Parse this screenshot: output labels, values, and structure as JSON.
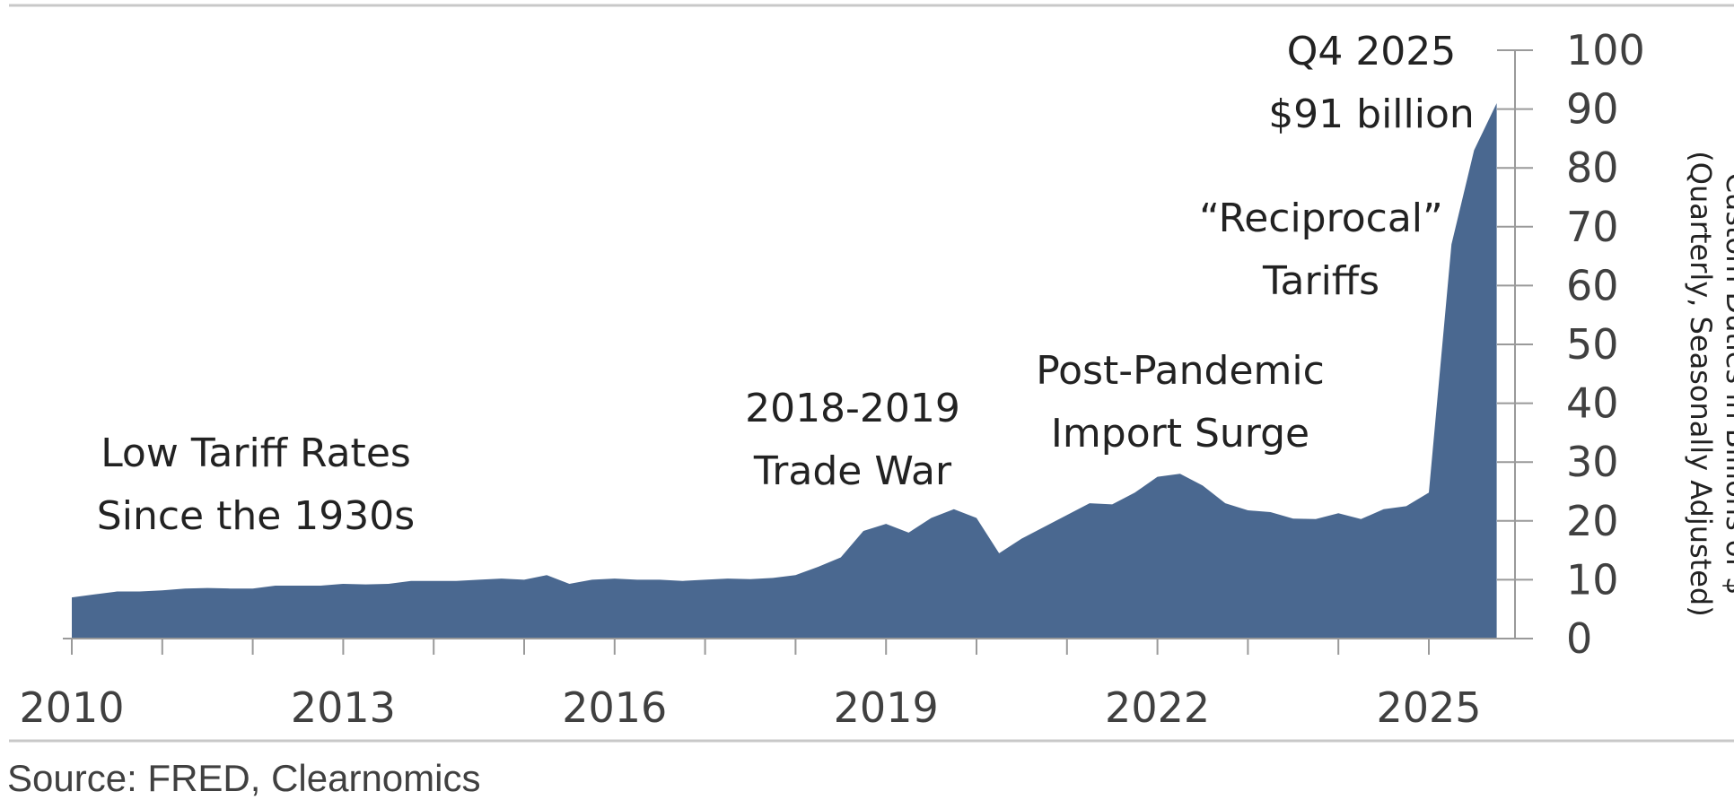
{
  "chart_data": {
    "type": "area",
    "color": "#4a6890",
    "xlabel": "",
    "ylabel": [
      "Custom Duties in Billions of $",
      "(Quarterly, Seasonally Adjusted)"
    ],
    "ylim": [
      0,
      100
    ],
    "yticks": [
      0,
      10,
      20,
      30,
      40,
      50,
      60,
      70,
      80,
      90,
      100
    ],
    "xticks": [
      2010,
      2013,
      2016,
      2019,
      2022,
      2025
    ],
    "grid": false,
    "y_axis_side": "right",
    "x": [
      "2010 Q1",
      "2010 Q2",
      "2010 Q3",
      "2010 Q4",
      "2011 Q1",
      "2011 Q2",
      "2011 Q3",
      "2011 Q4",
      "2012 Q1",
      "2012 Q2",
      "2012 Q3",
      "2012 Q4",
      "2013 Q1",
      "2013 Q2",
      "2013 Q3",
      "2013 Q4",
      "2014 Q1",
      "2014 Q2",
      "2014 Q3",
      "2014 Q4",
      "2015 Q1",
      "2015 Q2",
      "2015 Q3",
      "2015 Q4",
      "2016 Q1",
      "2016 Q2",
      "2016 Q3",
      "2016 Q4",
      "2017 Q1",
      "2017 Q2",
      "2017 Q3",
      "2017 Q4",
      "2018 Q1",
      "2018 Q2",
      "2018 Q3",
      "2018 Q4",
      "2019 Q1",
      "2019 Q2",
      "2019 Q3",
      "2019 Q4",
      "2020 Q1",
      "2020 Q2",
      "2020 Q3",
      "2020 Q4",
      "2021 Q1",
      "2021 Q2",
      "2021 Q3",
      "2021 Q4",
      "2022 Q1",
      "2022 Q2",
      "2022 Q3",
      "2022 Q4",
      "2023 Q1",
      "2023 Q2",
      "2023 Q3",
      "2023 Q4",
      "2024 Q1",
      "2024 Q2",
      "2024 Q3",
      "2024 Q4",
      "2025 Q1",
      "2025 Q2",
      "2025 Q3",
      "2025 Q4"
    ],
    "values": [
      7.0,
      7.5,
      8.0,
      8.0,
      8.2,
      8.5,
      8.6,
      8.5,
      8.5,
      9.0,
      9.0,
      9.0,
      9.3,
      9.2,
      9.3,
      9.8,
      9.8,
      9.8,
      10.0,
      10.2,
      10.0,
      10.8,
      9.3,
      10.0,
      10.2,
      10.0,
      10.0,
      9.8,
      10.0,
      10.2,
      10.1,
      10.3,
      10.8,
      12.2,
      13.8,
      18.3,
      19.5,
      18.0,
      20.5,
      22.0,
      20.5,
      14.5,
      17.0,
      19.0,
      21.0,
      23.0,
      22.8,
      24.8,
      27.5,
      28.0,
      26.0,
      23.0,
      21.8,
      21.5,
      20.4,
      20.3,
      21.3,
      20.3,
      22.0,
      22.5,
      24.8,
      67.0,
      83.0,
      91.0
    ],
    "annotations": [
      {
        "id": "low",
        "lines": [
          "Low Tariff Rates",
          "Since the 1930s"
        ]
      },
      {
        "id": "tradewar",
        "lines": [
          "2018-2019",
          "Trade War"
        ]
      },
      {
        "id": "pandemic",
        "lines": [
          "Post-Pandemic",
          "Import Surge"
        ]
      },
      {
        "id": "reciprocal",
        "lines": [
          "“Reciprocal”",
          "Tariffs"
        ]
      },
      {
        "id": "q4",
        "lines": [
          "Q4 2025",
          "$91 billion"
        ]
      }
    ]
  },
  "source": "Source: FRED, Clearnomics"
}
